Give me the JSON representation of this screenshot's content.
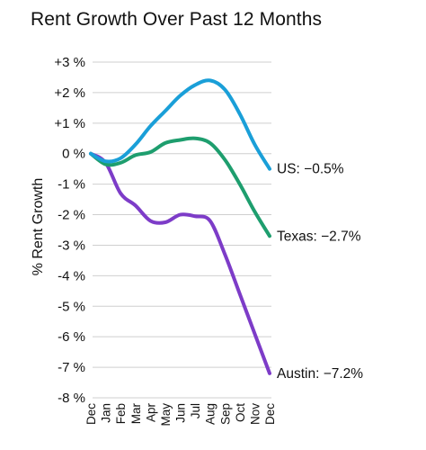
{
  "chart_data": {
    "type": "line",
    "title": "Rent Growth Over Past 12 Months",
    "ylabel": "% Rent Growth",
    "xlabel": "",
    "categories": [
      "Dec",
      "Jan",
      "Feb",
      "Mar",
      "Apr",
      "May",
      "Jun",
      "Jul",
      "Aug",
      "Sep",
      "Oct",
      "Nov",
      "Dec"
    ],
    "ylim": [
      -8,
      3
    ],
    "yticks": [
      3,
      2,
      1,
      0,
      -1,
      -2,
      -3,
      -4,
      -5,
      -6,
      -7,
      -8
    ],
    "ytick_labels": [
      "+3 %",
      "+2 %",
      "+1 %",
      "0 %",
      "-1 %",
      "-2 %",
      "-3 %",
      "-4 %",
      "-5 %",
      "-6 %",
      "-7 %",
      "-8 %"
    ],
    "grid": true,
    "series": [
      {
        "key": "us",
        "color": "#1a9fd8",
        "end_label": "US: −0.5%",
        "values": [
          0,
          -0.25,
          -0.15,
          0.3,
          0.9,
          1.4,
          1.9,
          2.25,
          2.4,
          2.1,
          1.3,
          0.3,
          -0.5
        ]
      },
      {
        "key": "texas",
        "color": "#1e9e6e",
        "end_label": "Texas: −2.7%",
        "values": [
          0,
          -0.35,
          -0.3,
          -0.05,
          0.05,
          0.35,
          0.45,
          0.5,
          0.35,
          -0.2,
          -1.0,
          -1.9,
          -2.7
        ]
      },
      {
        "key": "austin",
        "color": "#7d3cc8",
        "end_label": "Austin: −7.2%",
        "values": [
          0,
          -0.3,
          -1.3,
          -1.7,
          -2.2,
          -2.25,
          -2.0,
          -2.05,
          -2.2,
          -3.3,
          -4.6,
          -5.9,
          -7.2
        ]
      }
    ]
  }
}
